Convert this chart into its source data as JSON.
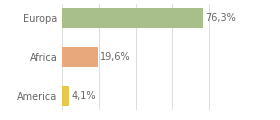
{
  "categories": [
    "America",
    "Africa",
    "Europa"
  ],
  "values": [
    4.1,
    19.6,
    76.3
  ],
  "labels": [
    "4,1%",
    "19,6%",
    "76,3%"
  ],
  "bar_colors": [
    "#e8c84a",
    "#e8a87c",
    "#a8bf8a"
  ],
  "background_color": "#ffffff",
  "xlim": [
    0,
    100
  ],
  "label_fontsize": 7,
  "tick_fontsize": 7,
  "bar_height": 0.52,
  "grid_color": "#dddddd",
  "text_color": "#666666"
}
